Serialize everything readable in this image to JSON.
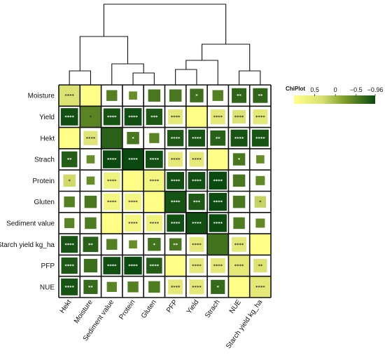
{
  "chart_data": {
    "type": "heatmap",
    "title": "",
    "row_labels": [
      "Moisture",
      "Yield",
      "Hekt",
      "Strach",
      "Protein",
      "Gluten",
      "Sediment value",
      "Starch yield kg_ha",
      "PFP",
      "NUE"
    ],
    "col_labels": [
      "Hekt",
      "Moisture",
      "Sediment value",
      "Protein",
      "Gluten",
      "PFP",
      "Yield",
      "Strach",
      "NUE",
      "Starch yield kg_ha"
    ],
    "values": [
      [
        0.55,
        1.0,
        -0.35,
        -0.2,
        -0.45,
        -0.45,
        -0.55,
        -0.35,
        -0.65,
        -0.65
      ],
      [
        -0.9,
        -0.3,
        -0.85,
        -0.9,
        -0.8,
        0.65,
        1.0,
        0.65,
        0.55,
        0.65
      ],
      [
        1.0,
        0.6,
        -0.7,
        -0.45,
        -0.3,
        -0.8,
        -0.85,
        -0.7,
        -0.85,
        -0.85
      ],
      [
        -0.75,
        -0.2,
        -0.96,
        -0.96,
        -0.9,
        0.65,
        0.65,
        1.0,
        -0.45,
        -0.2
      ],
      [
        0.45,
        -0.2,
        0.8,
        1.0,
        0.85,
        -0.9,
        -0.9,
        -0.96,
        -0.45,
        -0.25
      ],
      [
        -0.35,
        -0.45,
        0.85,
        0.85,
        1.0,
        -0.85,
        -0.8,
        -0.96,
        -0.45,
        0.4
      ],
      [
        -0.3,
        -0.4,
        1.0,
        0.85,
        0.8,
        -0.9,
        -0.9,
        -0.95,
        -0.4,
        -0.25
      ],
      [
        -0.85,
        -0.7,
        -0.35,
        -0.2,
        -0.5,
        -0.45,
        0.65,
        -0.5,
        0.65,
        1.0
      ],
      [
        -0.8,
        -0.55,
        -0.9,
        -0.95,
        -0.75,
        1.0,
        0.65,
        0.65,
        0.65,
        0.55
      ],
      [
        -0.85,
        -0.6,
        -0.3,
        -0.35,
        -0.4,
        0.65,
        0.65,
        -0.6,
        1.0,
        0.65
      ]
    ],
    "significance": [
      [
        "****",
        "",
        "",
        "",
        "",
        "",
        "*",
        "",
        "**",
        "**"
      ],
      [
        "****",
        "*",
        "****",
        "****",
        "***",
        "****",
        "",
        "****",
        "****",
        "****"
      ],
      [
        "",
        "****",
        "",
        "*",
        "",
        "****",
        "****",
        "**",
        "****",
        "****"
      ],
      [
        "**",
        "",
        "****",
        "****",
        "****",
        "****",
        "****",
        "",
        "*",
        ""
      ],
      [
        "*",
        "",
        "****",
        "",
        "****",
        "****",
        "****",
        "****",
        "",
        ""
      ],
      [
        "",
        "",
        "****",
        "****",
        "",
        "****",
        "***",
        "****",
        "",
        "*"
      ],
      [
        "",
        "",
        "",
        "****",
        "****",
        "****",
        "****",
        "****",
        "",
        ""
      ],
      [
        "****",
        "**",
        "",
        "",
        "*",
        "**",
        "****",
        "",
        "****",
        ""
      ],
      [
        "****",
        "",
        "****",
        "****",
        "****",
        "",
        "****",
        "****",
        "****",
        "**"
      ],
      [
        "****",
        "**",
        "",
        "",
        "",
        "****",
        "****",
        "*",
        "",
        "****"
      ]
    ],
    "legend": {
      "title": "ChiPlot",
      "ticks": [
        {
          "label": "0.5",
          "value": 0.5
        },
        {
          "label": "0",
          "value": 0
        },
        {
          "label": "−0.5",
          "value": -0.5
        },
        {
          "label": "−0.96",
          "value": -0.96
        }
      ],
      "range": [
        1,
        -0.96
      ],
      "placement": "top-right"
    },
    "colors": {
      "positive": "#ffff88",
      "mid": "#7f9f2c",
      "negative": "#0a4a10",
      "grid": "#111111"
    },
    "dendrogram": "top",
    "cell_shape": "square-size-by-magnitude"
  }
}
